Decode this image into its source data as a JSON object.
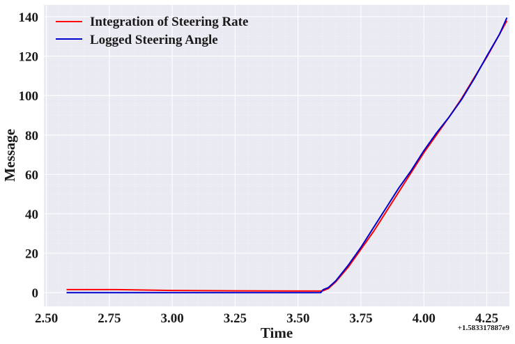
{
  "chart_data": {
    "type": "line",
    "xlabel": "Time",
    "ylabel": "Message",
    "x_offset_label": "+1.583317887e9",
    "xlim": [
      2.49,
      4.34
    ],
    "ylim": [
      -7,
      146
    ],
    "x_ticks": [
      2.5,
      2.75,
      3.0,
      3.25,
      3.5,
      3.75,
      4.0,
      4.25
    ],
    "x_tick_labels": [
      "2.50",
      "2.75",
      "3.00",
      "3.25",
      "3.50",
      "3.75",
      "4.00",
      "4.25"
    ],
    "y_ticks": [
      0,
      20,
      40,
      60,
      80,
      100,
      120,
      140
    ],
    "y_tick_labels": [
      "0",
      "20",
      "40",
      "60",
      "80",
      "100",
      "120",
      "140"
    ],
    "grid": true,
    "legend_position": "top-left",
    "colors": {
      "background": "#eaeaf2",
      "grid": "#ffffff",
      "minor_grid": "#f4f4f8"
    },
    "series": [
      {
        "name": "Integration of Steering Rate",
        "color": "#ff0000",
        "x": [
          2.58,
          2.78,
          3.0,
          3.25,
          3.5,
          3.59,
          3.6,
          3.62,
          3.65,
          3.7,
          3.75,
          3.8,
          3.85,
          3.9,
          3.95,
          4.0,
          4.05,
          4.1,
          4.15,
          4.2,
          4.25,
          4.3,
          4.33
        ],
        "y": [
          1.5,
          1.5,
          1.1,
          0.9,
          0.8,
          0.8,
          1.0,
          2.0,
          5.5,
          13.0,
          22.0,
          31.0,
          41.0,
          51.0,
          61.0,
          71.0,
          80.0,
          89.0,
          98.5,
          109.0,
          119.5,
          131.0,
          138.0
        ]
      },
      {
        "name": "Logged Steering Angle",
        "color": "#0000cc",
        "x": [
          2.58,
          2.8,
          3.0,
          3.25,
          3.5,
          3.59,
          3.6,
          3.62,
          3.65,
          3.7,
          3.75,
          3.8,
          3.85,
          3.9,
          3.95,
          4.0,
          4.05,
          4.1,
          4.15,
          4.2,
          4.25,
          4.3,
          4.33
        ],
        "y": [
          0,
          0,
          0,
          0,
          0,
          0,
          1.5,
          2.5,
          6.0,
          14.0,
          23.0,
          33.0,
          43.0,
          53.0,
          62.0,
          72.0,
          81.0,
          89.0,
          98.0,
          108.5,
          120.0,
          131.0,
          139.5
        ]
      }
    ]
  }
}
